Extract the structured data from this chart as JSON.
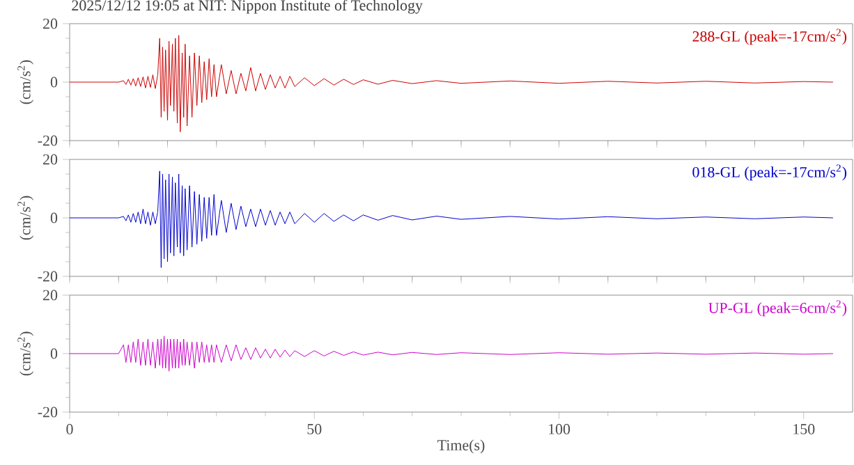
{
  "chart_data": [
    {
      "type": "line",
      "title": "2025/12/12 19:05 at NIT: Nippon Institute of Technology",
      "ylabel": "(cm/s$^{2}$)",
      "xlim": [
        0,
        160
      ],
      "ylim": [
        -20,
        20
      ],
      "tick_labels": "y",
      "xticks": [
        {
          "value": 0,
          "label": null
        },
        {
          "value": 10,
          "label": null
        },
        {
          "value": 20,
          "label": null
        },
        {
          "value": 30,
          "label": null
        },
        {
          "value": 40,
          "label": null
        },
        {
          "value": 50,
          "label": null
        },
        {
          "value": 60,
          "label": null
        },
        {
          "value": 70,
          "label": null
        },
        {
          "value": 80,
          "label": null
        },
        {
          "value": 90,
          "label": null
        },
        {
          "value": 100,
          "label": null
        },
        {
          "value": 110,
          "label": null
        },
        {
          "value": 120,
          "label": null
        },
        {
          "value": 130,
          "label": null
        },
        {
          "value": 140,
          "label": null
        },
        {
          "value": 150,
          "label": null
        }
      ],
      "yticks": [
        -20,
        {
          "value": -15,
          "label": null
        },
        {
          "value": -10,
          "label": null
        },
        {
          "value": -5,
          "label": null
        },
        0,
        {
          "value": 5,
          "label": null
        },
        {
          "value": 10,
          "label": null
        },
        {
          "value": 15,
          "label": null
        },
        20
      ],
      "x": [
        0,
        5,
        10,
        11,
        11.5,
        12,
        12.5,
        13,
        13.5,
        14,
        14.5,
        15,
        15.5,
        16,
        16.5,
        17,
        17.5,
        18,
        18.4,
        18.7,
        19,
        19.3,
        19.6,
        20,
        20.3,
        20.6,
        21,
        21.3,
        21.6,
        22,
        22.3,
        22.6,
        23,
        23.3,
        23.6,
        24,
        24.5,
        25,
        25.5,
        26,
        26.5,
        27,
        27.5,
        28,
        28.5,
        29,
        29.5,
        30,
        31,
        32,
        33,
        34,
        35,
        36,
        37,
        38,
        39,
        40,
        41,
        42,
        43,
        44,
        45,
        46,
        48,
        50,
        52,
        54,
        56,
        58,
        60,
        63,
        66,
        70,
        75,
        80,
        90,
        100,
        110,
        120,
        130,
        140,
        150,
        156
      ],
      "series": [
        {
          "name": "288-GL (peak=-17cm/s$^{2}$)",
          "color": "#cc0000",
          "values": [
            0,
            0,
            0,
            0.5,
            -0.8,
            1,
            -1,
            1.2,
            -1.3,
            1.5,
            -1.5,
            1.8,
            -2,
            2,
            -1.8,
            2.5,
            -2.2,
            2.5,
            15,
            -12,
            12,
            -10,
            11,
            -13,
            14,
            -8,
            13,
            -10,
            15,
            -14,
            16,
            -17,
            10,
            -12,
            13,
            -15,
            9,
            -12,
            10,
            -8,
            9,
            -7,
            7,
            -6,
            8,
            -5,
            6,
            -5,
            6,
            -4,
            4,
            -4,
            3,
            -3,
            5,
            -3,
            3,
            -2.5,
            2.5,
            -2,
            2,
            -2,
            2,
            -1.5,
            1.5,
            -1.2,
            1.2,
            -1,
            1,
            -0.8,
            0.8,
            -0.7,
            0.6,
            -0.5,
            0.5,
            -0.4,
            0.4,
            -0.4,
            0.3,
            -0.3,
            0.3,
            -0.3,
            0.2,
            0
          ]
        }
      ]
    },
    {
      "type": "line",
      "ylabel": "(cm/s$^{2}$)",
      "xlim": [
        0,
        160
      ],
      "ylim": [
        -20,
        20
      ],
      "tick_labels": "y",
      "xticks": [
        {
          "value": 0,
          "label": null
        },
        {
          "value": 10,
          "label": null
        },
        {
          "value": 20,
          "label": null
        },
        {
          "value": 30,
          "label": null
        },
        {
          "value": 40,
          "label": null
        },
        {
          "value": 50,
          "label": null
        },
        {
          "value": 60,
          "label": null
        },
        {
          "value": 70,
          "label": null
        },
        {
          "value": 80,
          "label": null
        },
        {
          "value": 90,
          "label": null
        },
        {
          "value": 100,
          "label": null
        },
        {
          "value": 110,
          "label": null
        },
        {
          "value": 120,
          "label": null
        },
        {
          "value": 130,
          "label": null
        },
        {
          "value": 140,
          "label": null
        },
        {
          "value": 150,
          "label": null
        }
      ],
      "yticks": [
        -20,
        {
          "value": -15,
          "label": null
        },
        {
          "value": -10,
          "label": null
        },
        {
          "value": -5,
          "label": null
        },
        0,
        {
          "value": 5,
          "label": null
        },
        {
          "value": 10,
          "label": null
        },
        {
          "value": 15,
          "label": null
        },
        20
      ],
      "x": [
        0,
        5,
        10,
        11,
        11.5,
        12,
        12.5,
        13,
        13.5,
        14,
        14.5,
        15,
        15.5,
        16,
        16.5,
        17,
        17.5,
        18,
        18.4,
        18.7,
        19,
        19.3,
        19.6,
        20,
        20.3,
        20.6,
        21,
        21.3,
        21.6,
        22,
        22.3,
        22.6,
        23,
        23.3,
        23.6,
        24,
        24.5,
        25,
        25.5,
        26,
        26.5,
        27,
        27.5,
        28,
        28.5,
        29,
        29.5,
        30,
        31,
        32,
        33,
        34,
        35,
        36,
        37,
        38,
        39,
        40,
        41,
        42,
        43,
        44,
        45,
        46,
        48,
        50,
        52,
        54,
        56,
        58,
        60,
        63,
        66,
        70,
        75,
        80,
        90,
        100,
        110,
        120,
        130,
        140,
        150,
        156
      ],
      "series": [
        {
          "name": "018-GL (peak=-17cm/s$^{2}$)",
          "color": "#0000cc",
          "values": [
            0,
            0,
            0,
            0.5,
            -1,
            1,
            -1.5,
            1.5,
            -1.5,
            2,
            -2,
            3,
            -2,
            2,
            -2.5,
            2,
            -2,
            2,
            16,
            -17,
            15,
            -14,
            13,
            -15,
            15,
            -12,
            14,
            -13,
            12,
            -10,
            15,
            -12,
            11,
            -13,
            10,
            -11,
            11,
            -10,
            9,
            -9,
            8,
            -8,
            7,
            -7,
            7,
            -6,
            8,
            -6,
            6,
            -5,
            5,
            -4,
            4,
            -3,
            3,
            -3,
            3,
            -2.5,
            2.5,
            -2.5,
            2,
            -2,
            2,
            -2,
            1.5,
            -1.5,
            1.5,
            -1.2,
            1,
            -1,
            1,
            -0.8,
            0.8,
            -0.7,
            0.6,
            -0.5,
            0.5,
            -0.4,
            0.4,
            -0.3,
            0.3,
            -0.3,
            0.3,
            0
          ]
        }
      ]
    },
    {
      "type": "line",
      "xlabel": "Time(s)",
      "ylabel": "(cm/s$^{2}$)",
      "xlim": [
        0,
        160
      ],
      "ylim": [
        -20,
        20
      ],
      "xticks": [
        0,
        {
          "value": 10,
          "label": null
        },
        {
          "value": 20,
          "label": null
        },
        {
          "value": 30,
          "label": null
        },
        {
          "value": 40,
          "label": null
        },
        50,
        {
          "value": 60,
          "label": null
        },
        {
          "value": 70,
          "label": null
        },
        {
          "value": 80,
          "label": null
        },
        {
          "value": 90,
          "label": null
        },
        100,
        {
          "value": 110,
          "label": null
        },
        {
          "value": 120,
          "label": null
        },
        {
          "value": 130,
          "label": null
        },
        {
          "value": 140,
          "label": null
        },
        150
      ],
      "yticks": [
        -20,
        {
          "value": -15,
          "label": null
        },
        {
          "value": -10,
          "label": null
        },
        {
          "value": -5,
          "label": null
        },
        0,
        {
          "value": 5,
          "label": null
        },
        {
          "value": 10,
          "label": null
        },
        {
          "value": 15,
          "label": null
        },
        20
      ],
      "x": [
        0,
        5,
        10,
        11,
        11.5,
        12,
        12.5,
        13,
        13.5,
        14,
        14.5,
        15,
        15.5,
        16,
        16.5,
        17,
        17.5,
        18,
        18.4,
        18.7,
        19,
        19.3,
        19.6,
        20,
        20.3,
        20.6,
        21,
        21.3,
        21.6,
        22,
        22.3,
        22.6,
        23,
        23.3,
        23.6,
        24,
        24.5,
        25,
        25.5,
        26,
        26.5,
        27,
        27.5,
        28,
        28.5,
        29,
        29.5,
        30,
        31,
        32,
        33,
        34,
        35,
        36,
        37,
        38,
        39,
        40,
        41,
        42,
        43,
        44,
        45,
        46,
        48,
        50,
        52,
        54,
        56,
        58,
        60,
        63,
        66,
        70,
        75,
        80,
        90,
        100,
        110,
        120,
        130,
        140,
        150,
        156
      ],
      "series": [
        {
          "name": "UP-GL (peak=6cm/s$^{2}$)",
          "color": "#cc00cc",
          "values": [
            0,
            0,
            0,
            3,
            -3,
            3,
            -3,
            4,
            -3,
            5,
            -4,
            4,
            -4,
            5,
            -4,
            4,
            -5,
            5,
            -4,
            5,
            -5,
            6,
            -5,
            5,
            -6,
            5,
            -5,
            5,
            -5,
            5,
            -5,
            4,
            -4,
            5,
            -4,
            4,
            -4,
            4,
            -5,
            4,
            -3,
            4,
            -3,
            3,
            -3,
            3,
            -3,
            3,
            -3,
            3,
            -2.5,
            3,
            -2,
            2,
            -2,
            2,
            -1.5,
            1.5,
            -1.5,
            1.5,
            -1.2,
            1.2,
            -1,
            1,
            -1,
            1,
            -0.8,
            0.8,
            -0.6,
            0.6,
            -0.5,
            0.5,
            -0.4,
            0.4,
            -0.3,
            0.3,
            -0.3,
            0.3,
            -0.2,
            0.2,
            -0.2,
            0.2,
            -0.2,
            0
          ]
        }
      ]
    }
  ]
}
